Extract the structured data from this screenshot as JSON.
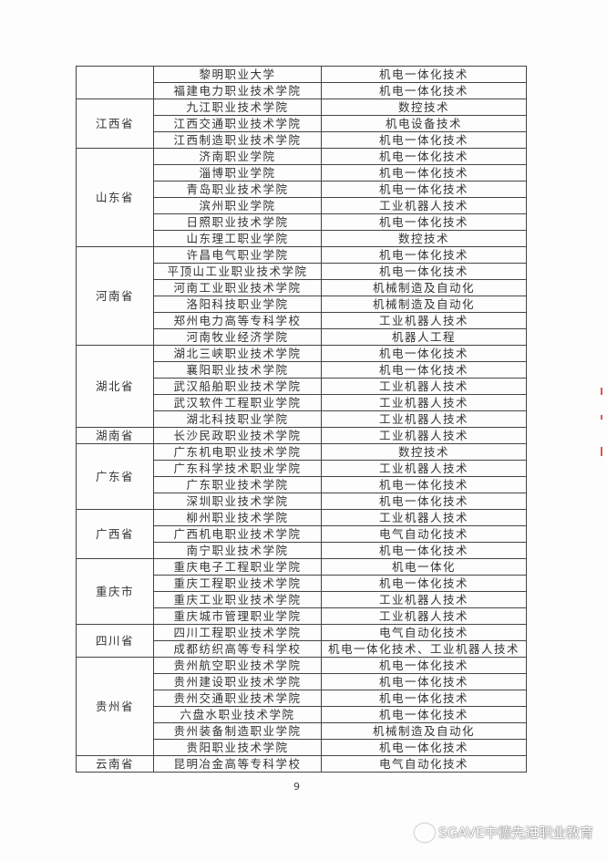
{
  "table": [
    {
      "province": "",
      "rows": [
        [
          "黎明职业大学",
          "机电一体化技术"
        ],
        [
          "福建电力职业技术学院",
          "机电一体化技术"
        ]
      ]
    },
    {
      "province": "江西省",
      "rows": [
        [
          "九江职业技术学院",
          "数控技术"
        ],
        [
          "江西交通职业技术学院",
          "机电设备技术"
        ],
        [
          "江西制造职业技术学院",
          "机电一体化技术"
        ]
      ]
    },
    {
      "province": "山东省",
      "rows": [
        [
          "济南职业学院",
          "机电一体化技术"
        ],
        [
          "淄博职业学院",
          "机电一体化技术"
        ],
        [
          "青岛职业技术学院",
          "机电一体化技术"
        ],
        [
          "滨州职业学院",
          "工业机器人技术"
        ],
        [
          "日照职业技术学院",
          "机电一体化技术"
        ],
        [
          "山东理工职业学院",
          "数控技术"
        ]
      ]
    },
    {
      "province": "河南省",
      "rows": [
        [
          "许昌电气职业学院",
          "机电一体化技术"
        ],
        [
          "平顶山工业职业技术学院",
          "机电一体化技术"
        ],
        [
          "河南工业职业技术学院",
          "机械制造及自动化"
        ],
        [
          "洛阳科技职业学院",
          "机械制造及自动化"
        ],
        [
          "郑州电力高等专科学校",
          "工业机器人技术"
        ],
        [
          "河南牧业经济学院",
          "机器人工程"
        ]
      ]
    },
    {
      "province": "湖北省",
      "rows": [
        [
          "湖北三峡职业技术学院",
          "机电一体化技术"
        ],
        [
          "襄阳职业技术学院",
          "机电一体化技术"
        ],
        [
          "武汉船舶职业技术学院",
          "工业机器人技术"
        ],
        [
          "武汉软件工程职业学院",
          "工业机器人技术"
        ],
        [
          "湖北科技职业学院",
          "工业机器人技术"
        ]
      ]
    },
    {
      "province": "湖南省",
      "rows": [
        [
          "长沙民政职业技术学院",
          "工业机器人技术"
        ]
      ]
    },
    {
      "province": "广东省",
      "rows": [
        [
          "广东机电职业技术学院",
          "数控技术"
        ],
        [
          "广东科学技术职业学院",
          "工业机器人技术"
        ],
        [
          "广东职业技术学院",
          "机电一体化技术"
        ],
        [
          "深圳职业技术学院",
          "机电一体化技术"
        ]
      ]
    },
    {
      "province": "广西省",
      "rows": [
        [
          "柳州职业技术学院",
          "工业机器人技术"
        ],
        [
          "广西机电职业技术学院",
          "电气自动化技术"
        ],
        [
          "南宁职业技术学院",
          "机电一体化技术"
        ]
      ]
    },
    {
      "province": "重庆市",
      "rows": [
        [
          "重庆电子工程职业学院",
          "机电一体化"
        ],
        [
          "重庆工程职业技术学院",
          "机电一体化技术"
        ],
        [
          "重庆工业职业技术学院",
          "工业机器人技术"
        ],
        [
          "重庆城市管理职业学院",
          "工业机器人技术"
        ]
      ]
    },
    {
      "province": "四川省",
      "rows": [
        [
          "四川工程职业技术学院",
          "电气自动化技术"
        ],
        [
          "成都纺织高等专科学校",
          "机电一体化技术、工业机器人技术"
        ]
      ]
    },
    {
      "province": "贵州省",
      "rows": [
        [
          "贵州航空职业技术学院",
          "机电一体化技术"
        ],
        [
          "贵州建设职业技术学院",
          "机电一体化技术"
        ],
        [
          "贵州交通职业技术学院",
          "机电一体化技术"
        ],
        [
          "六盘水职业技术学院",
          "机电一体化技术"
        ],
        [
          "贵州装备制造职业学院",
          "机械制造及自动化"
        ],
        [
          "贵阳职业技术学院",
          "机电一体化技术"
        ]
      ]
    },
    {
      "province": "云南省",
      "rows": [
        [
          "昆明冶金高等专科学校",
          "电气自动化技术"
        ]
      ]
    }
  ],
  "page_number": "9",
  "watermark": {
    "icon": "wechat-icon",
    "text": "SGAVE中德先进职业教育"
  }
}
